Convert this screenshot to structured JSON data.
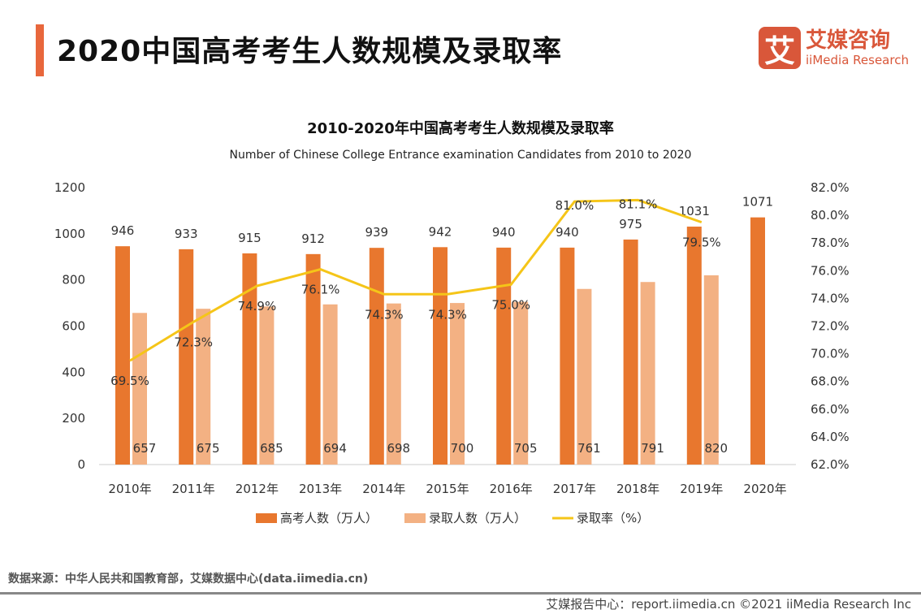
{
  "header": {
    "title": "2020中国高考考生人数规模及录取率",
    "logo_icon": "艾",
    "logo_cn": "艾媒咨询",
    "logo_en": "iiMedia Research",
    "accent": "#e8673c"
  },
  "chart_data": {
    "type": "bar+line",
    "title": "2010-2020年中国高考考生人数规模及录取率",
    "subtitle": "Number of Chinese College Entrance examination Candidates from 2010 to 2020",
    "categories": [
      "2010年",
      "2011年",
      "2012年",
      "2013年",
      "2014年",
      "2015年",
      "2016年",
      "2017年",
      "2018年",
      "2019年",
      "2020年"
    ],
    "series": [
      {
        "name": "高考人数（万人）",
        "type": "bar",
        "axis": "left",
        "color": "#e8772e",
        "values": [
          946,
          933,
          915,
          912,
          939,
          942,
          940,
          940,
          975,
          1031,
          1071
        ]
      },
      {
        "name": "录取人数（万人）",
        "type": "bar",
        "axis": "left",
        "color": "#f3b183",
        "values": [
          657,
          675,
          685,
          694,
          698,
          700,
          705,
          761,
          791,
          820,
          null
        ]
      },
      {
        "name": "录取率（%）",
        "type": "line",
        "axis": "right",
        "color": "#f5c518",
        "values": [
          69.5,
          72.3,
          74.9,
          76.1,
          74.3,
          74.3,
          75.0,
          81.0,
          81.1,
          79.5,
          null
        ]
      }
    ],
    "y_left": {
      "range": [
        0,
        1200
      ],
      "ticks": [
        "0",
        "200",
        "400",
        "600",
        "800",
        "1000",
        "1200"
      ]
    },
    "y_right": {
      "range": [
        62,
        82
      ],
      "ticks": [
        "62.0%",
        "64.0%",
        "66.0%",
        "68.0%",
        "70.0%",
        "72.0%",
        "74.0%",
        "76.0%",
        "78.0%",
        "80.0%",
        "82.0%"
      ]
    },
    "legend_position": "bottom",
    "grid": false
  },
  "footer": {
    "source": "数据来源：中华人民共和国教育部，艾媒数据中心(data.iimedia.cn)",
    "credit": "艾媒报告中心：report.iimedia.cn   ©2021  iiMedia Research  Inc"
  }
}
